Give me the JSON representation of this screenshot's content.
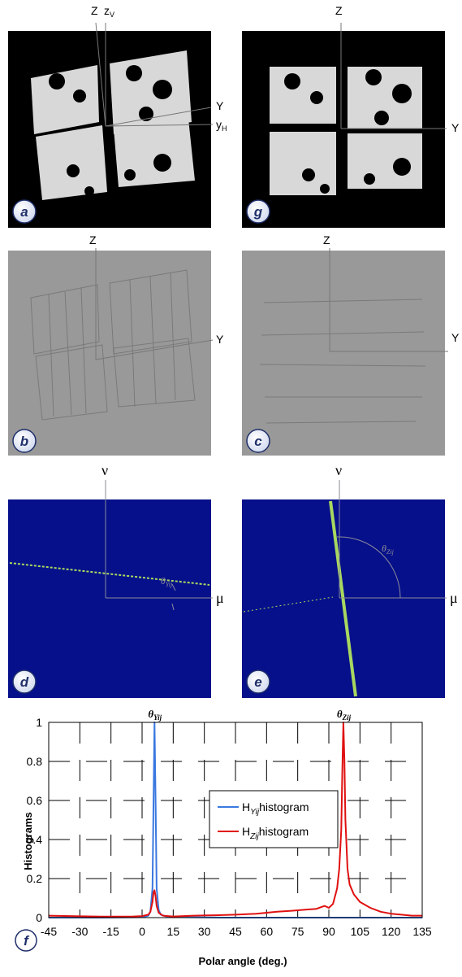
{
  "panels": {
    "a": {
      "badge": "a",
      "axis_z": "Z",
      "axis_zv": "z",
      "axis_zv_sub": "V",
      "axis_y": "Y",
      "axis_yh": "y",
      "axis_yh_sub": "H"
    },
    "g": {
      "badge": "g",
      "axis_z": "Z",
      "axis_y": "Y"
    },
    "b": {
      "badge": "b",
      "axis_z": "Z",
      "axis_y": "Y"
    },
    "c": {
      "badge": "c",
      "axis_z": "Z",
      "axis_y": "Y"
    },
    "d": {
      "badge": "d",
      "axis_v": "ν",
      "axis_u": "μ",
      "theta": "θ",
      "theta_sub": "Yij"
    },
    "e": {
      "badge": "e",
      "axis_v": "ν",
      "axis_u": "μ",
      "theta": "θ",
      "theta_sub": "Zij"
    }
  },
  "chart_data": {
    "type": "line",
    "badge": "f",
    "title": "",
    "xlabel": "Polar angle (deg.)",
    "ylabel": "Histograms",
    "xlim": [
      -45,
      135
    ],
    "ylim": [
      0,
      1
    ],
    "x_ticks": [
      "-45",
      "-30",
      "-15",
      "0",
      "15",
      "30",
      "45",
      "60",
      "75",
      "90",
      "105",
      "120",
      "135"
    ],
    "y_ticks": [
      "0",
      "0.2",
      "0.4",
      "0.6",
      "0.8",
      "1"
    ],
    "grid": true,
    "legend_position": "center",
    "peak_labels": [
      {
        "text": "θ",
        "sub": "Yij",
        "x": 6
      },
      {
        "text": "θ",
        "sub": "Zij",
        "x": 97
      }
    ],
    "series": [
      {
        "name": "H",
        "name_sub": "Yij",
        "name_suffix": "histogram",
        "color": "#3a78e0",
        "x": [
          -45,
          -20,
          0,
          3,
          4,
          5,
          5.5,
          6,
          6.5,
          7,
          8,
          9,
          12,
          20,
          40,
          60,
          80,
          100,
          135
        ],
        "y": [
          0,
          0,
          0.002,
          0.01,
          0.03,
          0.15,
          0.6,
          1.0,
          0.6,
          0.15,
          0.04,
          0.015,
          0.005,
          0.002,
          0,
          0,
          0,
          0,
          0
        ]
      },
      {
        "name": "H",
        "name_sub": "Zij",
        "name_suffix": "histogram",
        "color": "#e01010",
        "x": [
          -45,
          -35,
          -20,
          -5,
          0,
          3,
          4,
          5,
          5.5,
          6,
          6.5,
          7,
          8,
          10,
          15,
          25,
          35,
          45,
          55,
          65,
          72,
          78,
          84,
          88,
          90,
          92,
          94,
          95,
          96,
          96.5,
          97,
          97.5,
          98,
          99,
          100,
          102,
          105,
          110,
          115,
          120,
          125,
          130,
          135
        ],
        "y": [
          0.01,
          0.008,
          0.005,
          0.005,
          0.008,
          0.015,
          0.03,
          0.08,
          0.13,
          0.14,
          0.11,
          0.06,
          0.025,
          0.01,
          0.006,
          0.01,
          0.012,
          0.015,
          0.02,
          0.03,
          0.035,
          0.04,
          0.045,
          0.06,
          0.05,
          0.07,
          0.15,
          0.25,
          0.45,
          0.75,
          1.0,
          0.8,
          0.5,
          0.25,
          0.17,
          0.12,
          0.08,
          0.05,
          0.03,
          0.02,
          0.015,
          0.01,
          0.01
        ]
      }
    ]
  }
}
